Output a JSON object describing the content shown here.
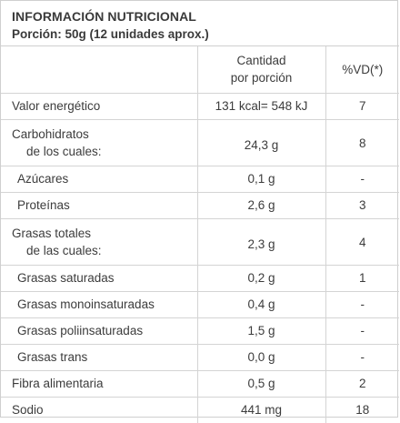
{
  "header": {
    "title": "INFORMACIÓN NUTRICIONAL",
    "portion": "Porción: 50g (12 unidades aprox.)"
  },
  "columns": {
    "amount_line1": "Cantidad",
    "amount_line2": "por porción",
    "dv": "%VD(*)"
  },
  "rows": [
    {
      "name": "Valor energético",
      "amount": "131 kcal= 548 kJ",
      "dv": "7"
    },
    {
      "name": "Carbohidratos",
      "name_sub": "de los cuales:",
      "amount": "24,3 g",
      "dv": "8"
    },
    {
      "name": "Azúcares",
      "amount": "0,1 g",
      "dv": "-"
    },
    {
      "name": "Proteínas",
      "amount": "2,6 g",
      "dv": "3"
    },
    {
      "name": "Grasas totales",
      "name_sub": "de las cuales:",
      "amount": "2,3 g",
      "dv": "4"
    },
    {
      "name": "Grasas saturadas",
      "amount": "0,2 g",
      "dv": "1"
    },
    {
      "name": "Grasas monoinsaturadas",
      "amount": "0,4 g",
      "dv": "-"
    },
    {
      "name": "Grasas poliinsaturadas",
      "amount": "1,5 g",
      "dv": "-"
    },
    {
      "name": "Grasas trans",
      "amount": "0,0 g",
      "dv": "-"
    },
    {
      "name": "Fibra alimentaria",
      "amount": "0,5 g",
      "dv": "2"
    },
    {
      "name": "Sodio",
      "amount": "441 mg",
      "dv": "18"
    }
  ]
}
